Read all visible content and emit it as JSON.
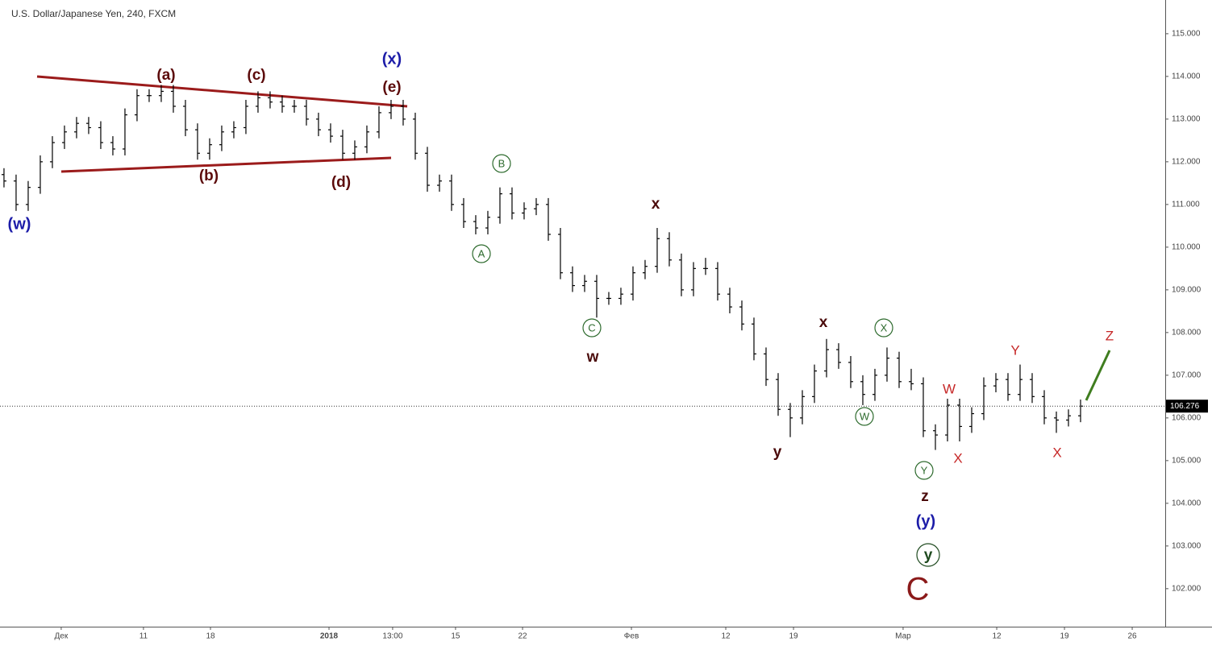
{
  "chart_data": {
    "type": "ohlc",
    "title": "U.S. Dollar/Japanese Yen, 240, FXCM",
    "color": "#000000",
    "ylim": [
      101.11,
      115.79
    ],
    "yticks": [
      {
        "value": 102,
        "label": "102.000"
      },
      {
        "value": 103,
        "label": "103.000"
      },
      {
        "value": 104,
        "label": "104.000"
      },
      {
        "value": 105,
        "label": "105.000"
      },
      {
        "value": 106,
        "label": "106.000"
      },
      {
        "value": 107,
        "label": "107.000"
      },
      {
        "value": 108,
        "label": "108.000"
      },
      {
        "value": 109,
        "label": "109.000"
      },
      {
        "value": 110,
        "label": "110.000"
      },
      {
        "value": 111,
        "label": "111.000"
      },
      {
        "value": 112,
        "label": "112.000"
      },
      {
        "value": 113,
        "label": "113.000"
      },
      {
        "value": 114,
        "label": "114.000"
      },
      {
        "value": 115,
        "label": "115.000"
      }
    ],
    "xlim": [
      -0.33,
      96
    ],
    "xticks": [
      {
        "value": 4.73,
        "label": "Дек"
      },
      {
        "value": 11.53,
        "label": "11"
      },
      {
        "value": 17.07,
        "label": "18"
      },
      {
        "value": 26.87,
        "label": "2018"
      },
      {
        "value": 32.13,
        "label": "13:00"
      },
      {
        "value": 37.33,
        "label": "15"
      },
      {
        "value": 42.87,
        "label": "22"
      },
      {
        "value": 51.87,
        "label": "Фев"
      },
      {
        "value": 59.67,
        "label": "12"
      },
      {
        "value": 65.27,
        "label": "19"
      },
      {
        "value": 74.33,
        "label": "Мар"
      },
      {
        "value": 82.07,
        "label": "12"
      },
      {
        "value": 87.67,
        "label": "19"
      },
      {
        "value": 93.27,
        "label": "26"
      }
    ],
    "last_price": 106.276,
    "open": [
      111.7,
      111.55,
      111.0,
      111.4,
      112.0,
      112.45,
      112.7,
      112.9,
      112.8,
      112.45,
      112.3,
      113.1,
      113.55,
      113.55,
      113.65,
      113.3,
      112.75,
      112.2,
      112.4,
      112.7,
      112.8,
      113.3,
      113.5,
      113.4,
      113.3,
      113.3,
      113.0,
      112.75,
      112.6,
      112.2,
      112.35,
      112.7,
      113.15,
      113.3,
      113.0,
      112.2,
      111.45,
      111.55,
      111.0,
      110.6,
      110.45,
      110.7,
      111.25,
      110.8,
      110.9,
      111.0,
      110.3,
      109.4,
      109.1,
      109.2,
      108.8,
      108.8,
      108.9,
      109.4,
      109.55,
      110.2,
      109.7,
      109.0,
      109.5,
      109.5,
      108.9,
      108.6,
      108.2,
      107.5,
      106.9,
      106.2,
      106.0,
      106.5,
      107.1,
      107.6,
      107.3,
      106.85,
      106.55,
      107.0,
      107.4,
      106.85,
      106.8,
      105.7,
      105.6,
      106.3,
      105.8,
      106.1,
      106.75,
      106.9,
      106.55,
      106.9,
      106.5,
      106.0,
      105.95,
      106.05
    ],
    "high": [
      111.85,
      111.7,
      111.55,
      112.15,
      112.6,
      112.85,
      113.05,
      113.05,
      112.95,
      112.6,
      113.25,
      113.7,
      113.7,
      113.8,
      113.8,
      113.45,
      112.9,
      112.55,
      112.85,
      112.95,
      113.45,
      113.65,
      113.65,
      113.55,
      113.45,
      113.45,
      113.15,
      112.9,
      112.75,
      112.5,
      112.85,
      113.3,
      113.45,
      113.45,
      113.15,
      112.35,
      111.7,
      111.7,
      111.15,
      110.75,
      110.85,
      111.4,
      111.4,
      111.05,
      111.15,
      111.15,
      110.45,
      109.55,
      109.35,
      109.35,
      108.95,
      109.05,
      109.55,
      109.7,
      110.45,
      110.35,
      109.85,
      109.65,
      109.75,
      109.65,
      109.05,
      108.75,
      108.35,
      107.65,
      107.05,
      106.35,
      106.65,
      107.25,
      107.85,
      107.75,
      107.45,
      107.0,
      107.15,
      107.65,
      107.55,
      107.15,
      106.95,
      105.85,
      106.45,
      106.45,
      106.25,
      106.95,
      107.05,
      107.05,
      107.25,
      107.05,
      106.65,
      106.15,
      106.2,
      106.43
    ],
    "low": [
      111.4,
      110.85,
      110.85,
      111.25,
      111.85,
      112.3,
      112.55,
      112.65,
      112.3,
      112.15,
      112.15,
      112.95,
      113.4,
      113.4,
      113.15,
      112.6,
      112.05,
      112.05,
      112.25,
      112.55,
      112.65,
      113.15,
      113.25,
      113.15,
      113.15,
      112.85,
      112.6,
      112.45,
      112.05,
      112.05,
      112.2,
      112.55,
      113.0,
      112.85,
      112.05,
      111.3,
      111.3,
      110.85,
      110.45,
      110.3,
      110.3,
      110.55,
      110.65,
      110.65,
      110.75,
      110.15,
      109.25,
      108.95,
      108.95,
      108.35,
      108.65,
      108.65,
      108.75,
      109.25,
      109.4,
      109.55,
      108.85,
      108.85,
      109.35,
      108.75,
      108.45,
      108.05,
      107.35,
      106.75,
      106.05,
      105.55,
      105.85,
      106.35,
      106.95,
      107.15,
      106.7,
      106.3,
      106.4,
      106.85,
      106.7,
      106.65,
      105.55,
      105.25,
      105.45,
      105.45,
      105.65,
      105.95,
      106.6,
      106.4,
      106.4,
      106.35,
      105.85,
      105.65,
      105.8,
      105.9
    ],
    "close": [
      111.55,
      111.0,
      111.4,
      112.0,
      112.45,
      112.7,
      112.9,
      112.8,
      112.45,
      112.3,
      113.1,
      113.55,
      113.55,
      113.65,
      113.3,
      112.75,
      112.2,
      112.4,
      112.7,
      112.8,
      113.3,
      113.5,
      113.4,
      113.3,
      113.3,
      113.0,
      112.75,
      112.6,
      112.2,
      112.35,
      112.7,
      113.15,
      113.3,
      113.0,
      112.2,
      111.45,
      111.55,
      111.0,
      110.6,
      110.45,
      110.7,
      111.25,
      110.8,
      110.9,
      111.0,
      110.3,
      109.4,
      109.1,
      109.2,
      108.8,
      108.8,
      108.9,
      109.4,
      109.55,
      110.2,
      109.7,
      109.0,
      109.5,
      109.5,
      108.9,
      108.6,
      108.2,
      107.5,
      106.9,
      106.2,
      106.0,
      106.5,
      107.1,
      107.6,
      107.3,
      106.85,
      106.55,
      107.0,
      107.4,
      106.85,
      106.8,
      105.7,
      105.6,
      106.3,
      105.8,
      106.1,
      106.75,
      106.9,
      106.55,
      106.9,
      106.5,
      106.0,
      105.95,
      106.05,
      106.276
    ],
    "annotations": [
      {
        "text": "(w)",
        "color": "#1c1ca8"
      },
      {
        "text": "(a)",
        "color": "#5c0b0b"
      },
      {
        "text": "(b)",
        "color": "#5c0b0b"
      },
      {
        "text": "(c)",
        "color": "#5c0b0b"
      },
      {
        "text": "(d)",
        "color": "#5c0b0b"
      },
      {
        "text": "(e)",
        "color": "#5c0b0b"
      },
      {
        "text": "(x)",
        "color": "#1c1ca8"
      },
      {
        "text": "A",
        "color": "#2e6b2e"
      },
      {
        "text": "B",
        "color": "#2e6b2e"
      },
      {
        "text": "C",
        "color": "#2e6b2e"
      },
      {
        "text": "w",
        "color": "#4a0a0a"
      },
      {
        "text": "x",
        "color": "#4a0a0a"
      },
      {
        "text": "y",
        "color": "#4a0a0a"
      },
      {
        "text": "x",
        "color": "#4a0a0a"
      },
      {
        "text": "W",
        "color": "#2e6b2e"
      },
      {
        "text": "X",
        "color": "#2e6b2e"
      },
      {
        "text": "Y",
        "color": "#2e6b2e"
      },
      {
        "text": "z",
        "color": "#4a0a0a"
      },
      {
        "text": "(y)",
        "color": "#1c1ca8"
      },
      {
        "text": "y",
        "color": "#1f4a1f"
      },
      {
        "text": "C",
        "color": "#8b1a1a"
      },
      {
        "text": "W",
        "color": "#c62828"
      },
      {
        "text": "X",
        "color": "#c62828"
      },
      {
        "text": "Y",
        "color": "#c62828"
      },
      {
        "text": "X",
        "color": "#c62828"
      },
      {
        "text": "Z",
        "color": "#c62828"
      }
    ]
  }
}
